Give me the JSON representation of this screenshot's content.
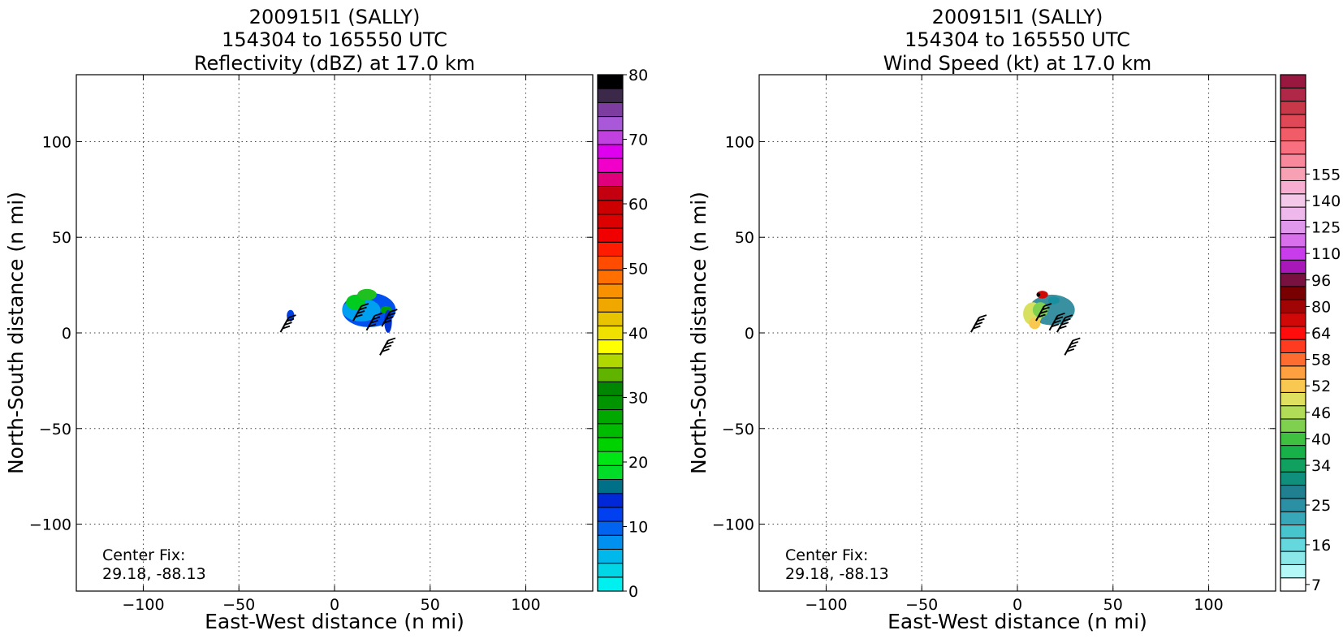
{
  "chart_data": [
    {
      "type": "heatmap",
      "title": [
        "200915I1 (SALLY)",
        "154304 to 165550 UTC",
        "Reflectivity (dBZ) at 17.0 km"
      ],
      "xlabel": "East-West distance (n mi)",
      "ylabel": "North-South distance (n mi)",
      "xlim": [
        -135,
        135
      ],
      "ylim": [
        -135,
        135
      ],
      "xticks": [
        -100,
        -50,
        0,
        50,
        100
      ],
      "yticks": [
        -100,
        -50,
        0,
        50,
        100
      ],
      "grid": true,
      "annotation": [
        "Center Fix:",
        "29.18, -88.13"
      ],
      "colorbar": {
        "min": 0,
        "max": 80,
        "tick_values": [
          0,
          10,
          20,
          30,
          40,
          50,
          60,
          70,
          80
        ],
        "tick_labels": [
          "0",
          "10",
          "20",
          "30",
          "40",
          "50",
          "60",
          "70",
          "80"
        ],
        "colors": [
          "#00f0f0",
          "#00d6e6",
          "#00b8ec",
          "#0090f0",
          "#0064f0",
          "#0040f0",
          "#0028d8",
          "#007088",
          "#00dc28",
          "#00e614",
          "#00d200",
          "#00bc00",
          "#00a800",
          "#009400",
          "#008600",
          "#60b400",
          "#b0d800",
          "#ffff00",
          "#f0e000",
          "#e8c400",
          "#f0a800",
          "#f89000",
          "#ff7000",
          "#ff4c00",
          "#ff1c00",
          "#f00000",
          "#dc0000",
          "#cc0000",
          "#c40010",
          "#e0007c",
          "#f000c8",
          "#e000f0",
          "#c040e0",
          "#a858d8",
          "#7c3ca0",
          "#3c2848",
          "#000000"
        ]
      },
      "wind_barbs": [
        {
          "x": -24,
          "y": 8
        },
        {
          "x": 14,
          "y": 14
        },
        {
          "x": 21,
          "y": 9
        },
        {
          "x": 29,
          "y": 11
        },
        {
          "x": 28,
          "y": -4
        }
      ],
      "echo_blobs": [
        {
          "x": 18,
          "y": 12,
          "rx": 14,
          "ry": 9,
          "color": "#0050f0"
        },
        {
          "x": 14,
          "y": 12,
          "rx": 10,
          "ry": 6,
          "color": "#00a0f0"
        },
        {
          "x": 11,
          "y": 16,
          "rx": 5,
          "ry": 4,
          "color": "#00cc20"
        },
        {
          "x": 17,
          "y": 20,
          "rx": 5,
          "ry": 3,
          "color": "#20c020"
        },
        {
          "x": 27,
          "y": 12,
          "rx": 3,
          "ry": 2,
          "color": "#00a000"
        },
        {
          "x": 28,
          "y": 6,
          "rx": 2,
          "ry": 6,
          "color": "#0030d0"
        },
        {
          "x": -23,
          "y": 9,
          "rx": 2,
          "ry": 3,
          "color": "#0040e0"
        }
      ]
    },
    {
      "type": "heatmap",
      "title": [
        "200915I1 (SALLY)",
        "154304 to 165550 UTC",
        "Wind Speed (kt) at 17.0 km"
      ],
      "xlabel": "East-West distance (n mi)",
      "ylabel": "North-South distance (n mi)",
      "xlim": [
        -135,
        135
      ],
      "ylim": [
        -135,
        135
      ],
      "xticks": [
        -100,
        -50,
        0,
        50,
        100
      ],
      "yticks": [
        -100,
        -50,
        0,
        50,
        100
      ],
      "grid": true,
      "annotation": [
        "Center Fix:",
        "29.18, -88.13"
      ],
      "colorbar": {
        "min": 7,
        "max": 160,
        "tick_labels": [
          "7",
          "16",
          "25",
          "34",
          "40",
          "46",
          "52",
          "58",
          "64",
          "80",
          "96",
          "110",
          "125",
          "140",
          "155"
        ],
        "tick_bins": [
          0,
          3,
          6,
          9,
          11,
          13,
          15,
          17,
          19,
          21,
          23,
          25,
          27,
          29,
          31
        ],
        "colors": [
          "#ffffff",
          "#b4f8f8",
          "#8ce8e8",
          "#64d8dc",
          "#48c4cc",
          "#38a8b8",
          "#2c90a4",
          "#208090",
          "#10907c",
          "#10a060",
          "#18b048",
          "#40c040",
          "#80d050",
          "#b0dc58",
          "#e0e060",
          "#f8c850",
          "#ffa040",
          "#ff6c30",
          "#ff3c20",
          "#ff0c0c",
          "#d00808",
          "#a00404",
          "#780000",
          "#781040",
          "#a818b8",
          "#c83cec",
          "#d870ec",
          "#e098ec",
          "#eeb8ec",
          "#f4c8e8",
          "#f8aed0",
          "#f8a0b4",
          "#f8889c",
          "#f87080",
          "#f05c68",
          "#e04858",
          "#c83848",
          "#b02848",
          "#981840"
        ]
      },
      "wind_barbs": [
        {
          "x": -20,
          "y": 8
        },
        {
          "x": 14,
          "y": 14
        },
        {
          "x": 21,
          "y": 9
        },
        {
          "x": 25,
          "y": 8
        },
        {
          "x": 29,
          "y": -4
        }
      ],
      "echo_blobs": [
        {
          "x": 18,
          "y": 12,
          "rx": 12,
          "ry": 8,
          "color": "#3890a0"
        },
        {
          "x": 8,
          "y": 10,
          "rx": 5,
          "ry": 6,
          "color": "#d8e060"
        },
        {
          "x": 12,
          "y": 12,
          "rx": 4,
          "ry": 4,
          "color": "#80d050"
        },
        {
          "x": 9,
          "y": 5,
          "rx": 3,
          "ry": 3,
          "color": "#f8c850"
        },
        {
          "x": 13,
          "y": 20,
          "rx": 3,
          "ry": 2,
          "color": "#d00808"
        },
        {
          "x": 19,
          "y": 17,
          "rx": 3,
          "ry": 2,
          "color": "#1890a0"
        },
        {
          "x": 11,
          "y": 20,
          "rx": 1,
          "ry": 1,
          "color": "#000000"
        }
      ]
    }
  ]
}
